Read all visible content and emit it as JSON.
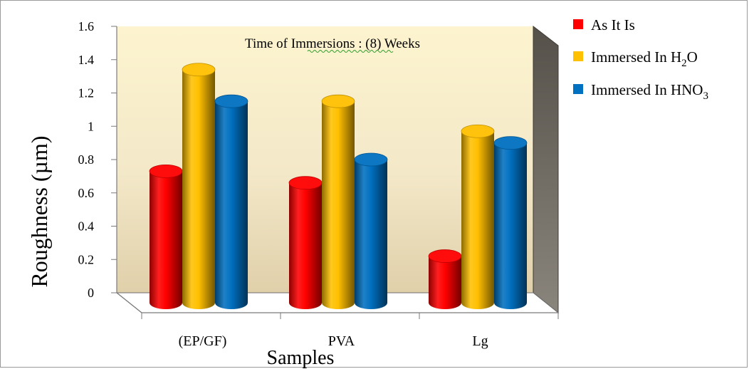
{
  "chart_data": {
    "type": "bar",
    "annotation": "Time of Immersions :  (8) Weeks",
    "xlabel": "Samples",
    "ylabel": "Roughness (µm)",
    "categories": [
      "(EP/GF)",
      "PVA",
      "Lg"
    ],
    "ylim": [
      0,
      1.6
    ],
    "yticks": [
      "0",
      "0.2",
      "0.4",
      "0.6",
      "0.8",
      "1",
      "1.2",
      "1.4",
      "1.6"
    ],
    "series": [
      {
        "name": "As It Is",
        "color": "#ff0000",
        "values": [
          0.79,
          0.72,
          0.28
        ]
      },
      {
        "name": "Immersed In H2O",
        "color": "#ffc000",
        "values": [
          1.4,
          1.21,
          1.03
        ]
      },
      {
        "name": "Immersed In HNO3",
        "color": "#0070c0",
        "values": [
          1.21,
          0.86,
          0.96
        ]
      }
    ],
    "legend_position": "right",
    "style": "3d-cylinder",
    "grid": false
  },
  "legend_text": {
    "h2o_prefix": "Immersed In H",
    "h2o_sub": "2",
    "h2o_suffix": "O",
    "hno3_prefix": "Immersed In HNO",
    "hno3_sub": "3"
  }
}
